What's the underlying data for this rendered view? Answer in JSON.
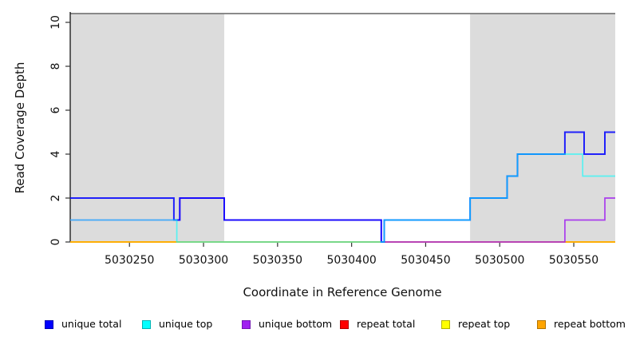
{
  "chart_data": {
    "type": "line",
    "title": "",
    "xlabel": "Coordinate in Reference Genome",
    "ylabel": "Read Coverage Depth",
    "xlim": [
      5030210,
      5030578
    ],
    "ylim": [
      0,
      10.4
    ],
    "x_ticks": [
      5030250,
      5030300,
      5030350,
      5030400,
      5030450,
      5030500,
      5030550
    ],
    "y_ticks": [
      0,
      2,
      4,
      6,
      8,
      10
    ],
    "grid": false,
    "legend_position": "bottom",
    "top_line": {
      "depth": 10.4,
      "color": "#7a7a7a"
    },
    "shaded_regions": [
      {
        "x0": 5030210,
        "x1": 5030314,
        "color": "#dcdcdc"
      },
      {
        "x0": 5030480,
        "x1": 5030578,
        "color": "#dcdcdc"
      }
    ],
    "series": [
      {
        "name": "unique total",
        "color": "#0000ff",
        "swatch_border": "#0000b3",
        "steps": [
          [
            5030210,
            2
          ],
          [
            5030280,
            1
          ],
          [
            5030284,
            2
          ],
          [
            5030314,
            1
          ],
          [
            5030420,
            0
          ],
          [
            5030422,
            1
          ],
          [
            5030480,
            2
          ],
          [
            5030505,
            3
          ],
          [
            5030512,
            4
          ],
          [
            5030544,
            5
          ],
          [
            5030557,
            4
          ],
          [
            5030571,
            5
          ]
        ]
      },
      {
        "name": "unique top",
        "color": "#00ffff",
        "swatch_border": "#00b3b3",
        "steps": [
          [
            5030210,
            1
          ],
          [
            5030282,
            0
          ],
          [
            5030422,
            1
          ],
          [
            5030480,
            2
          ],
          [
            5030505,
            3
          ],
          [
            5030512,
            4
          ],
          [
            5030556,
            3
          ]
        ]
      },
      {
        "name": "unique bottom",
        "color": "#a020f0",
        "swatch_border": "#7318b3",
        "steps": [
          [
            5030210,
            1
          ],
          [
            5030284,
            2
          ],
          [
            5030314,
            1
          ],
          [
            5030420,
            0
          ],
          [
            5030544,
            1
          ],
          [
            5030571,
            2
          ]
        ]
      },
      {
        "name": "repeat total",
        "color": "#ff0000",
        "swatch_border": "#b30000",
        "steps": [
          [
            5030210,
            0
          ]
        ]
      },
      {
        "name": "repeat top",
        "color": "#ffff00",
        "swatch_border": "#b3b300",
        "steps": [
          [
            5030210,
            0
          ]
        ]
      },
      {
        "name": "repeat bottom",
        "color": "#ffa500",
        "swatch_border": "#b37400",
        "steps": [
          [
            5030210,
            0
          ]
        ]
      }
    ]
  }
}
